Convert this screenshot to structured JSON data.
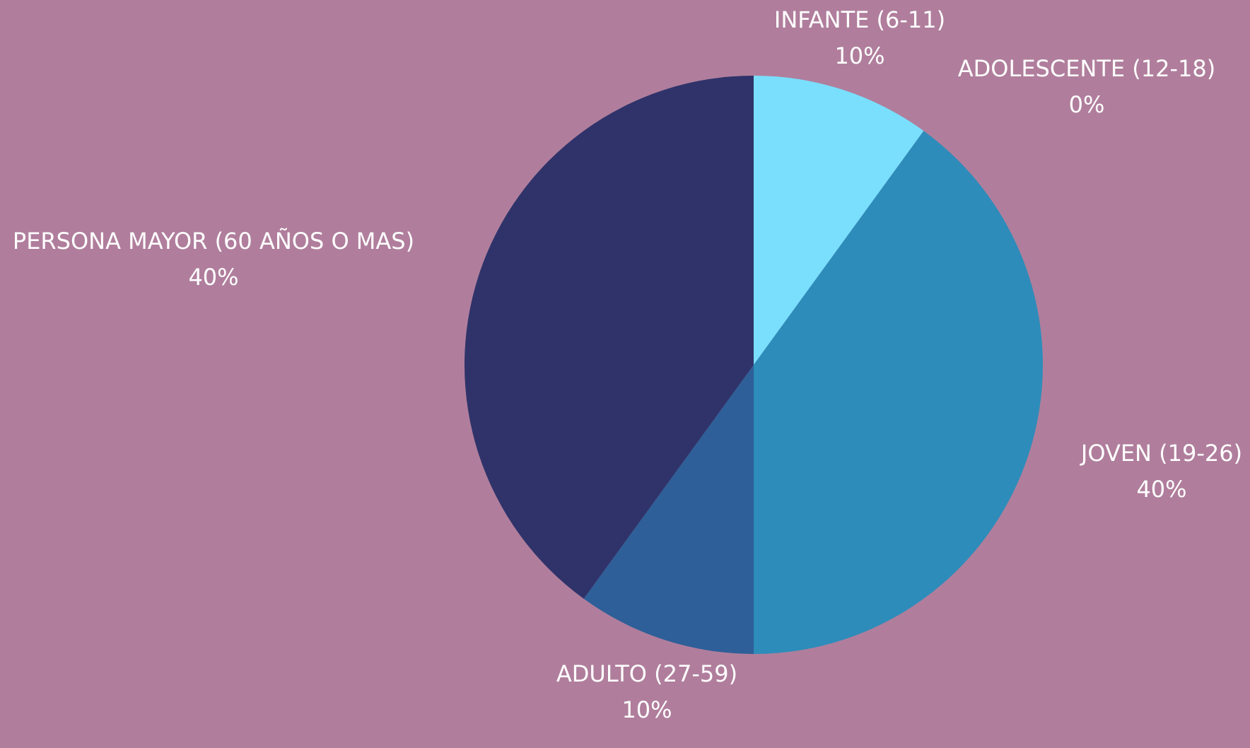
{
  "chart_data": {
    "type": "pie",
    "categories": [
      "INFANTE (6-11)",
      "ADOLESCENTE (12-18)",
      "JOVEN (19-26)",
      "ADULTO (27-59)",
      "PERSONA MAYOR (60 AÑOS O MAS)"
    ],
    "values": [
      10,
      0,
      40,
      10,
      40
    ],
    "value_labels": [
      "10%",
      "0%",
      "40%",
      "10%",
      "40%"
    ],
    "colors": [
      "#79dffd",
      "#4fb6e0",
      "#2d8cba",
      "#2e5f98",
      "#2f336a"
    ]
  }
}
